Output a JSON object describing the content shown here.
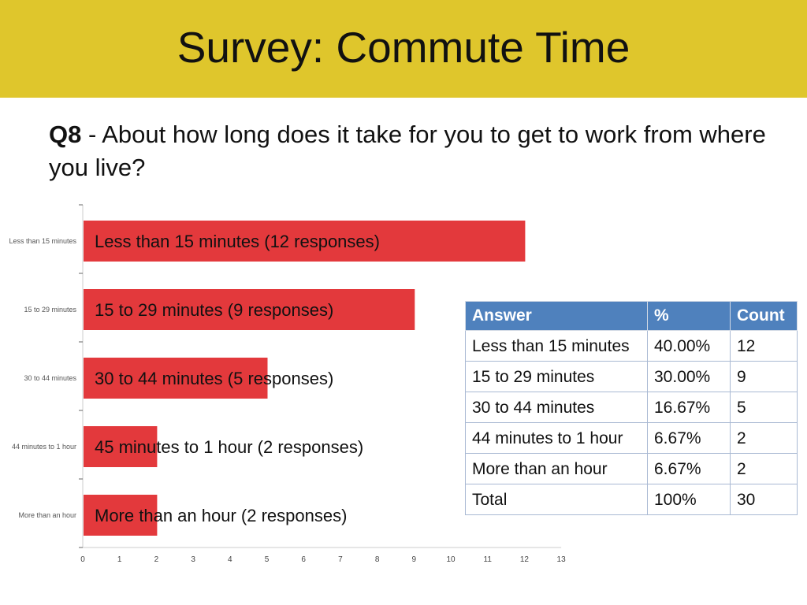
{
  "header": {
    "title": "Survey: Commute Time"
  },
  "question": {
    "number": "Q8",
    "text": " - About how long does it take for you to get to work from where you live?"
  },
  "colors": {
    "header_bg": "#dfc62c",
    "bar": "#e3393c",
    "table_header": "#4f81bd"
  },
  "chart_data": {
    "type": "bar",
    "orientation": "horizontal",
    "categories": [
      "Less than 15 minutes",
      "15 to 29 minutes",
      "30 to 44 minutes",
      "44 minutes to 1 hour",
      "More than an hour"
    ],
    "values": [
      12,
      9,
      5,
      2,
      2
    ],
    "bar_labels": [
      "Less than 15 minutes (12 responses)",
      "15 to 29 minutes (9 responses)",
      "30 to 44 minutes  (5 responses)",
      "45 minutes to 1 hour  (2 responses)",
      "More than an hour  (2 responses)"
    ],
    "xlim": [
      0,
      13
    ],
    "xticks": [
      0,
      1,
      2,
      3,
      4,
      5,
      6,
      7,
      8,
      9,
      10,
      11,
      12,
      13
    ],
    "grid": false
  },
  "table": {
    "headers": [
      "Answer",
      "%",
      "Count"
    ],
    "rows": [
      [
        "Less than 15 minutes",
        "40.00%",
        "12"
      ],
      [
        "15 to 29 minutes",
        "30.00%",
        "9"
      ],
      [
        "30 to 44 minutes",
        "16.67%",
        "5"
      ],
      [
        "44 minutes to  1 hour",
        "6.67%",
        "2"
      ],
      [
        "More than an hour",
        "6.67%",
        "2"
      ],
      [
        "Total",
        "100%",
        "30"
      ]
    ]
  }
}
